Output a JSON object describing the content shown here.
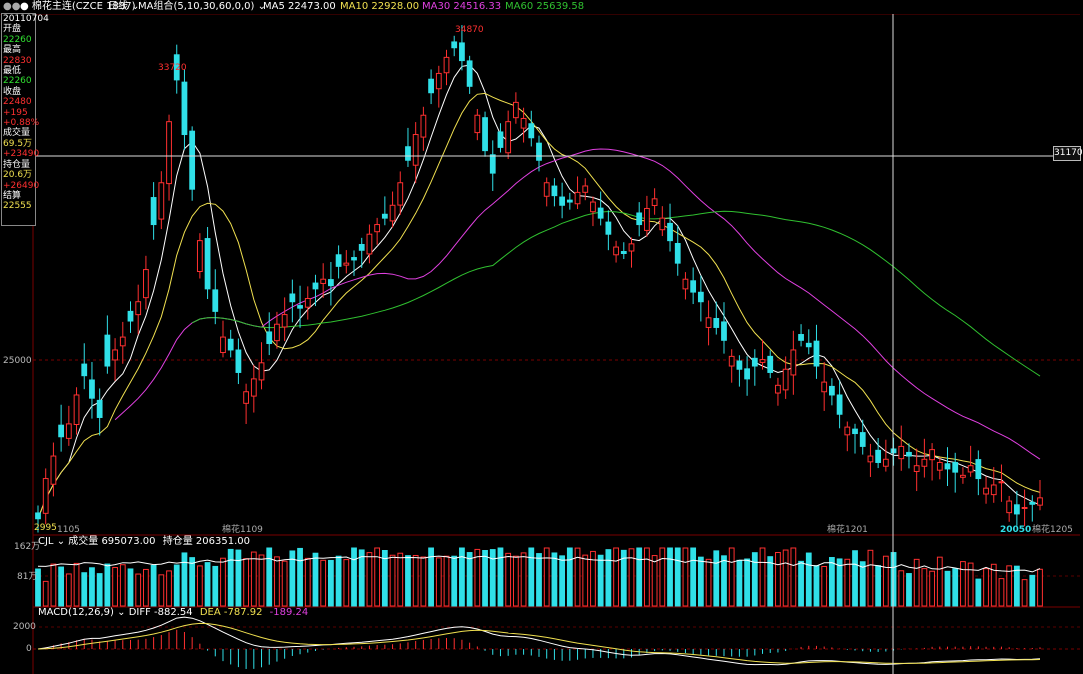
{
  "header": {
    "dots": "●●",
    "instrument": "● 棉花主连(CZCE 1837)",
    "period": "日线",
    "ma_title": "MA组合(5,10,30,60,0,0)",
    "ma_values": [
      {
        "label": "MA5 22473.00",
        "color": "#ffffff"
      },
      {
        "label": "MA10 22928.00",
        "color": "#f0e050"
      },
      {
        "label": "MA30 24516.33",
        "color": "#e040e0"
      },
      {
        "label": "MA60 25639.58",
        "color": "#30c030"
      }
    ]
  },
  "info_panel": [
    {
      "text": "20110704",
      "color": "#ffffff"
    },
    {
      "text": "开盘",
      "color": "#ffffff"
    },
    {
      "text": "22260",
      "color": "#30e030"
    },
    {
      "text": "最高",
      "color": "#ffffff"
    },
    {
      "text": "22830",
      "color": "#ff3030"
    },
    {
      "text": "最低",
      "color": "#ffffff"
    },
    {
      "text": "22260",
      "color": "#30e030"
    },
    {
      "text": "收盘",
      "color": "#ffffff"
    },
    {
      "text": "22480",
      "color": "#ff3030"
    },
    {
      "text": "+195",
      "color": "#ff3030"
    },
    {
      "text": "+0.88%",
      "color": "#ff3030"
    },
    {
      "text": "成交量",
      "color": "#ffffff"
    },
    {
      "text": "69.5万",
      "color": "#f0e050"
    },
    {
      "text": "+23490",
      "color": "#ff3030"
    },
    {
      "text": "持仓量",
      "color": "#ffffff"
    },
    {
      "text": "20.6万",
      "color": "#f0e050"
    },
    {
      "text": "+26490",
      "color": "#ff3030"
    },
    {
      "text": "结算",
      "color": "#ffffff"
    },
    {
      "text": "22555",
      "color": "#f0e050"
    }
  ],
  "crosshair_price": "31170",
  "colors": {
    "up": "#ff3030",
    "down": "#30e0e8",
    "ma5": "#ffffff",
    "ma10": "#f0e050",
    "ma30": "#e040e0",
    "ma60": "#30c030",
    "grid": "#7a0000"
  },
  "price_panel": {
    "y_label": "25000",
    "peak_labels": [
      "33720",
      "34870"
    ],
    "low_label": "20050",
    "start_label": "2995",
    "contract_labels": [
      "1105",
      "棉花1109",
      "棉花1201",
      "棉花1205"
    ]
  },
  "volume_panel": {
    "title": "CJL",
    "volume_label": "成交量 695073.00",
    "oi_label": "持仓量 206351.00",
    "y_labels": [
      "162万",
      "81万"
    ]
  },
  "macd_panel": {
    "title": "MACD(12,26,9)",
    "diff_label": "DIFF -882.54",
    "dea_label": "DEA -787.92",
    "macd_label": "-189.24",
    "y_labels": [
      "2000",
      "0"
    ]
  },
  "chart_data": {
    "type": "candlestick",
    "ylim": [
      19700,
      35500
    ],
    "y_tick": 25000,
    "y_tick_label": "25000",
    "closes": [
      20050,
      21300,
      22000,
      22600,
      23000,
      23900,
      24500,
      23800,
      23200,
      24800,
      25300,
      25700,
      26200,
      26800,
      27800,
      29200,
      30500,
      32400,
      33700,
      32000,
      30300,
      28700,
      27200,
      26500,
      25700,
      25300,
      24600,
      24000,
      24400,
      24900,
      25500,
      26100,
      26400,
      26800,
      26600,
      26900,
      27200,
      27500,
      27300,
      27900,
      28000,
      28100,
      28400,
      28900,
      29200,
      29400,
      29800,
      30500,
      31200,
      32000,
      32600,
      33300,
      33900,
      34400,
      34700,
      34300,
      33500,
      32600,
      31500,
      30800,
      31600,
      32400,
      33000,
      32500,
      31900,
      31200,
      30500,
      30100,
      29800,
      29900,
      30200,
      30400,
      29900,
      29400,
      28900,
      28500,
      28300,
      28600,
      29200,
      29700,
      30000,
      29400,
      28700,
      28000,
      27500,
      27100,
      26800,
      26300,
      26000,
      25600,
      25100,
      24700,
      24400,
      24800,
      25000,
      24600,
      24200,
      24700,
      25300,
      25600,
      25400,
      24800,
      24300,
      23900,
      23300,
      22900,
      22700,
      22300,
      22000,
      21800,
      21900,
      22100,
      22300,
      22000,
      21700,
      21900,
      22200,
      21800,
      21600,
      21500,
      21400,
      21700,
      21300,
      21000,
      21100,
      21200,
      20600,
      20200,
      20400,
      20500,
      20700
    ]
  }
}
